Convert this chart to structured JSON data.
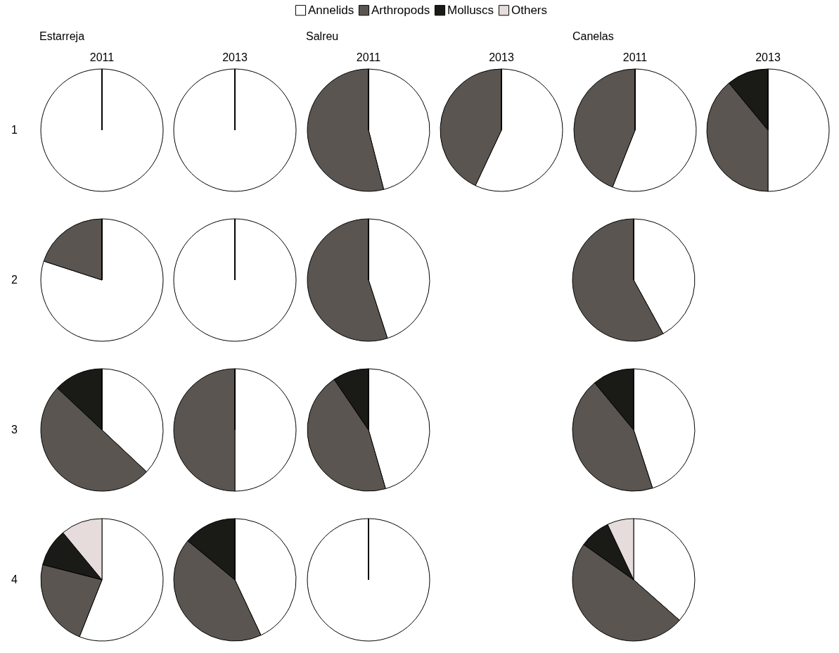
{
  "chart_data": [
    {
      "type": "pie",
      "title": "Estarreja",
      "subtitle": "2011",
      "ylabel": "1",
      "legend": "top",
      "categories": [
        "Annelids",
        "Arthropods",
        "Molluscs",
        "Others"
      ],
      "values": [
        100,
        0,
        0,
        0
      ],
      "colors": [
        "#ffffff",
        "#5a5550",
        "#1a1a17",
        "#e6dcdc"
      ]
    },
    {
      "type": "pie",
      "subtitle": "2013",
      "values": [
        100,
        0,
        0,
        0
      ],
      "colors": [
        "#ffffff",
        "#5a5550",
        "#1a1a17",
        "#e6dcdc"
      ]
    },
    {
      "type": "pie",
      "title": "Salreu",
      "subtitle": "2011",
      "values": [
        46,
        54,
        0,
        0
      ],
      "colors": [
        "#ffffff",
        "#5a5550",
        "#1a1a17",
        "#e6dcdc"
      ]
    },
    {
      "type": "pie",
      "subtitle": "2013",
      "values": [
        57,
        43,
        0,
        0
      ],
      "colors": [
        "#ffffff",
        "#5a5550",
        "#1a1a17",
        "#e6dcdc"
      ]
    },
    {
      "type": "pie",
      "title": "Canelas",
      "subtitle": "2011",
      "values": [
        56,
        44,
        0,
        0
      ],
      "colors": [
        "#ffffff",
        "#5a5550",
        "#1a1a17",
        "#e6dcdc"
      ]
    },
    {
      "type": "pie",
      "subtitle": "2013",
      "values": [
        50,
        39,
        11,
        0
      ],
      "colors": [
        "#ffffff",
        "#5a5550",
        "#1a1a17",
        "#e6dcdc"
      ]
    },
    {
      "type": "pie",
      "ylabel": "2",
      "values": [
        80,
        20,
        0,
        0
      ],
      "colors": [
        "#ffffff",
        "#5a5550",
        "#1a1a17",
        "#e6dcdc"
      ]
    },
    {
      "type": "pie",
      "values": [
        100,
        0,
        0,
        0
      ],
      "colors": [
        "#ffffff",
        "#5a5550",
        "#1a1a17",
        "#e6dcdc"
      ]
    },
    {
      "type": "pie",
      "values": [
        45,
        55,
        0,
        0
      ],
      "colors": [
        "#ffffff",
        "#5a5550",
        "#1a1a17",
        "#e6dcdc"
      ]
    },
    {
      "type": "pie",
      "values": [
        42,
        58,
        0,
        0
      ],
      "colors": [
        "#ffffff",
        "#5a5550",
        "#1a1a17",
        "#e6dcdc"
      ]
    },
    {
      "type": "pie",
      "ylabel": "3",
      "values": [
        37,
        50,
        13,
        0
      ],
      "colors": [
        "#ffffff",
        "#5a5550",
        "#1a1a17",
        "#e6dcdc"
      ]
    },
    {
      "type": "pie",
      "values": [
        50,
        50,
        0,
        0
      ],
      "colors": [
        "#ffffff",
        "#5a5550",
        "#1a1a17",
        "#e6dcdc"
      ]
    },
    {
      "type": "pie",
      "values": [
        45.5,
        45,
        9.5,
        0
      ],
      "colors": [
        "#ffffff",
        "#5a5550",
        "#1a1a17",
        "#e6dcdc"
      ]
    },
    {
      "type": "pie",
      "values": [
        45,
        44,
        11,
        0
      ],
      "colors": [
        "#ffffff",
        "#5a5550",
        "#1a1a17",
        "#e6dcdc"
      ]
    },
    {
      "type": "pie",
      "ylabel": "4",
      "values": [
        56,
        23,
        10,
        11
      ],
      "colors": [
        "#ffffff",
        "#5a5550",
        "#1a1a17",
        "#e6dcdc"
      ]
    },
    {
      "type": "pie",
      "values": [
        43,
        43,
        14,
        0
      ],
      "colors": [
        "#ffffff",
        "#5a5550",
        "#1a1a17",
        "#e6dcdc"
      ]
    },
    {
      "type": "pie",
      "values": [
        100,
        0,
        0,
        0
      ],
      "colors": [
        "#ffffff",
        "#5a5550",
        "#1a1a17",
        "#e6dcdc"
      ]
    },
    {
      "type": "pie",
      "values": [
        36.5,
        48.3,
        8.2,
        7
      ],
      "colors": [
        "#ffffff",
        "#5a5550",
        "#1a1a17",
        "#e6dcdc"
      ]
    }
  ]
}
